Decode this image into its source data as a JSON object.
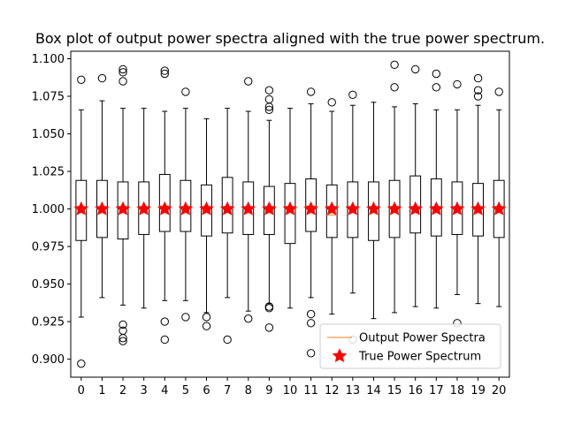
{
  "chart_data": {
    "type": "box",
    "title": "Box plot of output power spectra aligned with the true power spectrum.",
    "xlabel": "",
    "ylabel": "",
    "ylim": [
      0.888,
      1.105
    ],
    "yticks": [
      "0.900",
      "0.925",
      "0.950",
      "0.975",
      "1.000",
      "1.025",
      "1.050",
      "1.075",
      "1.100"
    ],
    "ytick_values": [
      0.9,
      0.925,
      0.95,
      0.975,
      1.0,
      1.025,
      1.05,
      1.075,
      1.1
    ],
    "categories": [
      "0",
      "1",
      "2",
      "3",
      "4",
      "5",
      "6",
      "7",
      "8",
      "9",
      "10",
      "11",
      "12",
      "13",
      "14",
      "15",
      "16",
      "17",
      "18",
      "19",
      "20"
    ],
    "grid": false,
    "legend": {
      "position": "lower-right",
      "entries": [
        "Output Power Spectra",
        "True Power Spectrum"
      ]
    },
    "colors": {
      "box": "#000000",
      "median": "#ff7f0e",
      "true_marker": "#ff0000"
    },
    "boxes": [
      {
        "label": "0",
        "whislo": 0.928,
        "q1": 0.979,
        "med": 1.0,
        "q3": 1.019,
        "whishi": 1.066,
        "fliers": [
          1.086,
          0.897
        ]
      },
      {
        "label": "1",
        "whislo": 0.941,
        "q1": 0.981,
        "med": 1.0,
        "q3": 1.019,
        "whishi": 1.072,
        "fliers": [
          1.087
        ]
      },
      {
        "label": "2",
        "whislo": 0.936,
        "q1": 0.98,
        "med": 1.001,
        "q3": 1.018,
        "whishi": 1.067,
        "fliers": [
          1.093,
          1.091,
          1.085,
          0.923,
          0.919,
          0.914,
          0.912
        ]
      },
      {
        "label": "3",
        "whislo": 0.934,
        "q1": 0.983,
        "med": 1.0,
        "q3": 1.018,
        "whishi": 1.067,
        "fliers": []
      },
      {
        "label": "4",
        "whislo": 0.939,
        "q1": 0.985,
        "med": 1.002,
        "q3": 1.023,
        "whishi": 1.065,
        "fliers": [
          1.092,
          1.09,
          0.925,
          0.913
        ]
      },
      {
        "label": "5",
        "whislo": 0.939,
        "q1": 0.985,
        "med": 1.0,
        "q3": 1.019,
        "whishi": 1.067,
        "fliers": [
          1.078,
          0.928
        ]
      },
      {
        "label": "6",
        "whislo": 0.931,
        "q1": 0.982,
        "med": 0.999,
        "q3": 1.016,
        "whishi": 1.06,
        "fliers": [
          0.928,
          0.922
        ]
      },
      {
        "label": "7",
        "whislo": 0.941,
        "q1": 0.984,
        "med": 1.0,
        "q3": 1.021,
        "whishi": 1.067,
        "fliers": [
          0.913
        ]
      },
      {
        "label": "8",
        "whislo": 0.932,
        "q1": 0.983,
        "med": 1.0,
        "q3": 1.018,
        "whishi": 1.065,
        "fliers": [
          1.085,
          0.927
        ]
      },
      {
        "label": "9",
        "whislo": 0.937,
        "q1": 0.983,
        "med": 0.999,
        "q3": 1.015,
        "whishi": 1.059,
        "fliers": [
          1.079,
          1.073,
          1.068,
          1.066,
          0.935,
          0.934,
          0.921
        ]
      },
      {
        "label": "10",
        "whislo": 0.934,
        "q1": 0.977,
        "med": 1.0,
        "q3": 1.017,
        "whishi": 1.067,
        "fliers": []
      },
      {
        "label": "11",
        "whislo": 0.941,
        "q1": 0.985,
        "med": 1.002,
        "q3": 1.02,
        "whishi": 1.07,
        "fliers": [
          1.078,
          0.93,
          0.924,
          0.904
        ]
      },
      {
        "label": "12",
        "whislo": 0.93,
        "q1": 0.981,
        "med": 0.996,
        "q3": 1.016,
        "whishi": 1.065,
        "fliers": [
          1.071
        ]
      },
      {
        "label": "13",
        "whislo": 0.944,
        "q1": 0.981,
        "med": 1.0,
        "q3": 1.018,
        "whishi": 1.069,
        "fliers": [
          1.076,
          0.913
        ]
      },
      {
        "label": "14",
        "whislo": 0.927,
        "q1": 0.979,
        "med": 1.0,
        "q3": 1.018,
        "whishi": 1.071,
        "fliers": []
      },
      {
        "label": "15",
        "whislo": 0.931,
        "q1": 0.981,
        "med": 1.0,
        "q3": 1.019,
        "whishi": 1.068,
        "fliers": [
          1.096,
          1.081
        ]
      },
      {
        "label": "16",
        "whislo": 0.935,
        "q1": 0.984,
        "med": 1.0,
        "q3": 1.022,
        "whishi": 1.07,
        "fliers": [
          1.093
        ]
      },
      {
        "label": "17",
        "whislo": 0.934,
        "q1": 0.982,
        "med": 1.0,
        "q3": 1.02,
        "whishi": 1.066,
        "fliers": [
          1.09,
          1.081
        ]
      },
      {
        "label": "18",
        "whislo": 0.943,
        "q1": 0.983,
        "med": 1.0,
        "q3": 1.018,
        "whishi": 1.066,
        "fliers": [
          1.083,
          0.924
        ]
      },
      {
        "label": "19",
        "whislo": 0.937,
        "q1": 0.982,
        "med": 1.0,
        "q3": 1.017,
        "whishi": 1.069,
        "fliers": [
          1.087,
          1.079,
          1.075
        ]
      },
      {
        "label": "20",
        "whislo": 0.935,
        "q1": 0.981,
        "med": 1.0,
        "q3": 1.019,
        "whishi": 1.066,
        "fliers": [
          1.078
        ]
      }
    ],
    "true_power_spectrum": [
      1,
      1,
      1,
      1,
      1,
      1,
      1,
      1,
      1,
      1,
      1,
      1,
      1,
      1,
      1,
      1,
      1,
      1,
      1,
      1,
      1
    ]
  }
}
